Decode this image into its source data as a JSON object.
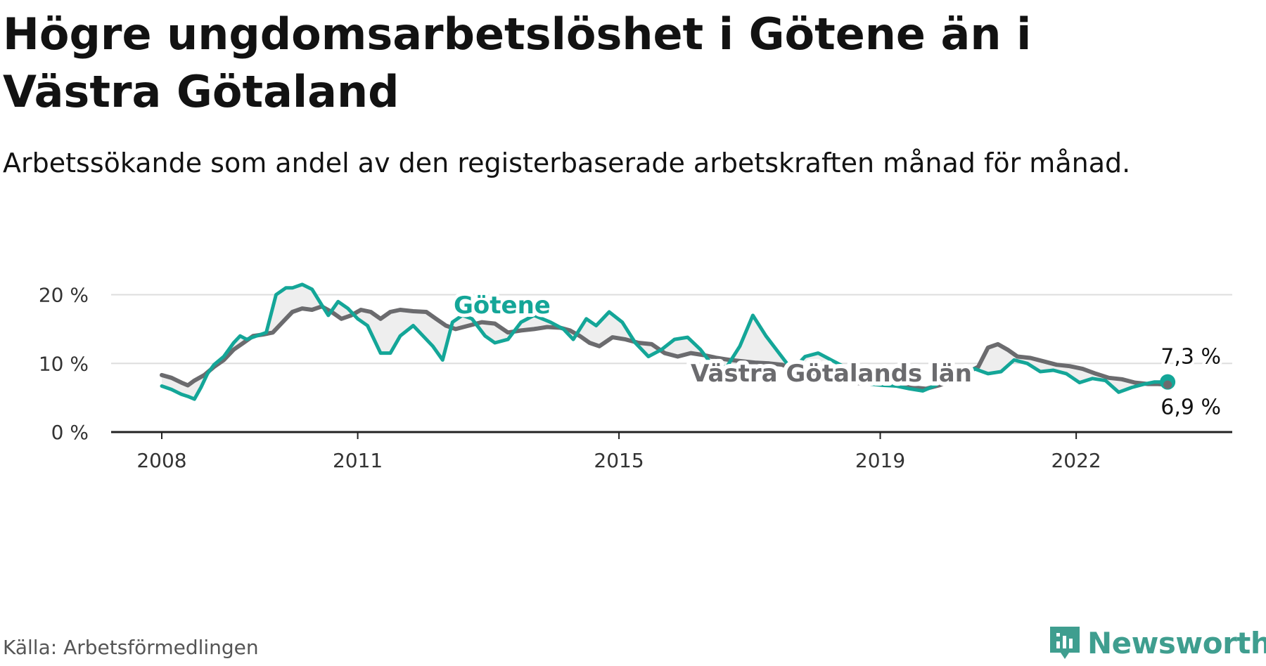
{
  "title": "Högre ungdomsarbetslöshet i Götene än i Västra Götaland",
  "subtitle": "Arbetssökande som andel av den registerbaserade arbetskraften månad för månad.",
  "source": "Källa: Arbetsförmedlingen",
  "logo_text": "Newsworthy",
  "colors": {
    "gotene": "#14a698",
    "vg": "#6b6b6e",
    "grid": "#dddddd",
    "axis": "#222222",
    "fill": "#eeeeee",
    "logo": "#3f9e8f"
  },
  "icons": {
    "logo": "newsworthy-logo-icon"
  },
  "chart_data": {
    "type": "line",
    "title": "Högre ungdomsarbetslöshet i Götene än i Västra Götaland",
    "ylabel": "",
    "xlabel": "",
    "ylim": [
      0,
      22
    ],
    "xlim": [
      2008,
      2023.7
    ],
    "yticks": [
      {
        "value": 0,
        "label": "0 %"
      },
      {
        "value": 10,
        "label": "10 %"
      },
      {
        "value": 20,
        "label": "20 %"
      }
    ],
    "xticks": [
      {
        "value": 2008,
        "label": "2008"
      },
      {
        "value": 2011,
        "label": "2011"
      },
      {
        "value": 2015,
        "label": "2015"
      },
      {
        "value": 2019,
        "label": "2019"
      },
      {
        "value": 2022,
        "label": "2022"
      }
    ],
    "grid": true,
    "series": [
      {
        "name": "Götene",
        "label": "Götene",
        "color": "#14a698",
        "end_label": "7,3 %",
        "x": [
          2008.0,
          2008.15,
          2008.3,
          2008.4,
          2008.5,
          2008.6,
          2008.7,
          2008.8,
          2008.95,
          2009.1,
          2009.2,
          2009.3,
          2009.45,
          2009.6,
          2009.75,
          2009.9,
          2010.0,
          2010.15,
          2010.3,
          2010.45,
          2010.55,
          2010.7,
          2010.85,
          2011.0,
          2011.15,
          2011.35,
          2011.5,
          2011.65,
          2011.85,
          2012.0,
          2012.15,
          2012.3,
          2012.45,
          2012.6,
          2012.75,
          2012.95,
          2013.1,
          2013.3,
          2013.5,
          2013.7,
          2013.95,
          2014.15,
          2014.3,
          2014.5,
          2014.65,
          2014.85,
          2015.05,
          2015.25,
          2015.45,
          2015.65,
          2015.85,
          2016.05,
          2016.25,
          2016.45,
          2016.65,
          2016.85,
          2017.05,
          2017.25,
          2017.45,
          2017.65,
          2017.85,
          2018.05,
          2018.25,
          2018.45,
          2018.65,
          2018.85,
          2019.05,
          2019.25,
          2019.45,
          2019.65,
          2019.85,
          2020.05,
          2020.25,
          2020.45,
          2020.65,
          2020.85,
          2021.05,
          2021.25,
          2021.45,
          2021.65,
          2021.85,
          2022.05,
          2022.25,
          2022.45,
          2022.65,
          2022.85,
          2023.05,
          2023.2,
          2023.4
        ],
        "values": [
          6.7,
          6.2,
          5.5,
          5.2,
          4.8,
          6.5,
          8.5,
          9.8,
          11.0,
          13.0,
          14.0,
          13.5,
          14.0,
          14.5,
          20.0,
          21.0,
          21.0,
          21.5,
          20.8,
          18.5,
          17.0,
          19.0,
          18.0,
          16.5,
          15.5,
          11.5,
          11.5,
          14.0,
          15.5,
          14.0,
          12.5,
          10.5,
          16.0,
          17.0,
          16.5,
          14.0,
          13.0,
          13.5,
          16.0,
          17.0,
          16.0,
          15.0,
          13.5,
          16.5,
          15.5,
          17.5,
          16.0,
          13.0,
          11.0,
          12.0,
          13.5,
          13.8,
          12.0,
          9.5,
          9.5,
          12.5,
          17.0,
          14.0,
          11.5,
          9.0,
          11.0,
          11.5,
          10.5,
          9.5,
          8.0,
          7.0,
          6.8,
          6.7,
          6.3,
          6.0,
          6.8,
          8.5,
          9.0,
          9.2,
          8.5,
          8.8,
          10.5,
          10.0,
          8.8,
          9.0,
          8.5,
          7.2,
          7.8,
          7.5,
          5.8,
          6.5,
          7.0,
          7.3,
          7.3
        ]
      },
      {
        "name": "Västra Götalands län",
        "label": "Västra Götalands län",
        "color": "#6b6b6e",
        "end_label": "6,9 %",
        "x": [
          2008.0,
          2008.15,
          2008.3,
          2008.4,
          2008.5,
          2008.65,
          2008.8,
          2008.95,
          2009.1,
          2009.25,
          2009.4,
          2009.55,
          2009.7,
          2009.85,
          2010.0,
          2010.15,
          2010.3,
          2010.45,
          2010.6,
          2010.75,
          2010.9,
          2011.05,
          2011.2,
          2011.35,
          2011.5,
          2011.65,
          2011.85,
          2012.05,
          2012.2,
          2012.35,
          2012.5,
          2012.7,
          2012.9,
          2013.1,
          2013.3,
          2013.5,
          2013.7,
          2013.9,
          2014.1,
          2014.25,
          2014.4,
          2014.55,
          2014.7,
          2014.9,
          2015.1,
          2015.3,
          2015.5,
          2015.7,
          2015.9,
          2016.1,
          2016.3,
          2016.5,
          2016.7,
          2016.9,
          2017.1,
          2017.3,
          2017.5,
          2017.7,
          2017.9,
          2018.1,
          2018.3,
          2018.5,
          2018.7,
          2018.9,
          2019.1,
          2019.3,
          2019.5,
          2019.7,
          2019.9,
          2020.1,
          2020.3,
          2020.5,
          2020.65,
          2020.8,
          2020.95,
          2021.1,
          2021.3,
          2021.5,
          2021.7,
          2021.9,
          2022.1,
          2022.3,
          2022.5,
          2022.7,
          2022.9,
          2023.1,
          2023.25,
          2023.4
        ],
        "values": [
          8.3,
          7.9,
          7.2,
          6.8,
          7.5,
          8.3,
          9.5,
          10.5,
          12.0,
          13.0,
          14.0,
          14.2,
          14.5,
          16.0,
          17.5,
          18.0,
          17.8,
          18.3,
          17.5,
          16.5,
          17.0,
          17.8,
          17.5,
          16.5,
          17.5,
          17.8,
          17.6,
          17.5,
          16.5,
          15.5,
          15.0,
          15.5,
          16.0,
          15.8,
          14.5,
          14.8,
          15.0,
          15.3,
          15.2,
          14.8,
          14.0,
          13.0,
          12.5,
          13.8,
          13.5,
          13.0,
          12.8,
          11.5,
          11.0,
          11.5,
          11.2,
          10.8,
          10.5,
          10.3,
          10.1,
          10.0,
          9.8,
          9.0,
          8.6,
          8.1,
          7.6,
          7.3,
          7.1,
          7.2,
          7.0,
          6.8,
          6.5,
          6.3,
          6.8,
          7.5,
          8.5,
          9.5,
          12.3,
          12.8,
          12.0,
          11.0,
          10.8,
          10.3,
          9.8,
          9.6,
          9.2,
          8.5,
          7.9,
          7.7,
          7.2,
          7.0,
          7.0,
          6.9
        ]
      }
    ]
  }
}
